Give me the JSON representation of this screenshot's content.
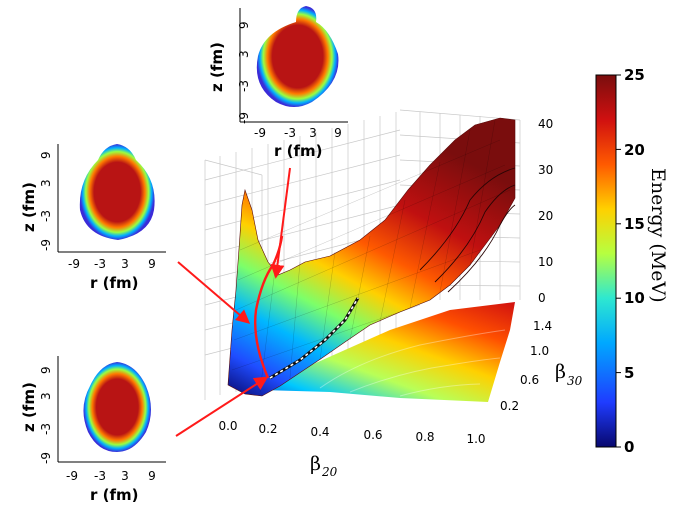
{
  "chart_data": {
    "type": "surface",
    "x_axis": {
      "label": "β",
      "subscript": "20",
      "ticks": [
        "0.0",
        "0.2",
        "0.4",
        "0.6",
        "0.8",
        "1.0"
      ],
      "range": [
        0,
        1.0
      ]
    },
    "y_axis": {
      "label": "β",
      "subscript": "30",
      "ticks": [
        "0.2",
        "0.6",
        "1.0",
        "1.4"
      ],
      "range": [
        0,
        1.4
      ]
    },
    "z_axis": {
      "ticks": [
        "0",
        "10",
        "20",
        "30",
        "40"
      ],
      "range": [
        0,
        40
      ]
    },
    "colorbar": {
      "label": "Energy (MeV)",
      "ticks": [
        "0",
        "5",
        "10",
        "15",
        "20",
        "25"
      ],
      "range": [
        0,
        25
      ],
      "colors": [
        "#08086e",
        "#1f3cff",
        "#00a8ff",
        "#2ee8d0",
        "#b6ff40",
        "#ffd000",
        "#ff5a00",
        "#d01010",
        "#7a0d0d"
      ]
    },
    "insets": [
      {
        "id": "top",
        "xlabel": "r (fm)",
        "ylabel": "z (fm)",
        "xticks": [
          "-9",
          "-3",
          "3",
          "9"
        ],
        "yticks": [
          "9",
          "3",
          "-3",
          "-9"
        ]
      },
      {
        "id": "middle",
        "xlabel": "r (fm)",
        "ylabel": "z (fm)",
        "xticks": [
          "-9",
          "-3",
          "3",
          "9"
        ],
        "yticks": [
          "9",
          "3",
          "-3",
          "-9"
        ]
      },
      {
        "id": "bottom",
        "xlabel": "r (fm)",
        "ylabel": "z (fm)",
        "xticks": [
          "-9",
          "-3",
          "3",
          "9"
        ],
        "yticks": [
          "9",
          "3",
          "-3",
          "-9"
        ]
      }
    ],
    "path_colors": {
      "fission_path": "#ff1a1a",
      "arrows": "#ff1a1a",
      "dashed_path": "#111111"
    }
  }
}
